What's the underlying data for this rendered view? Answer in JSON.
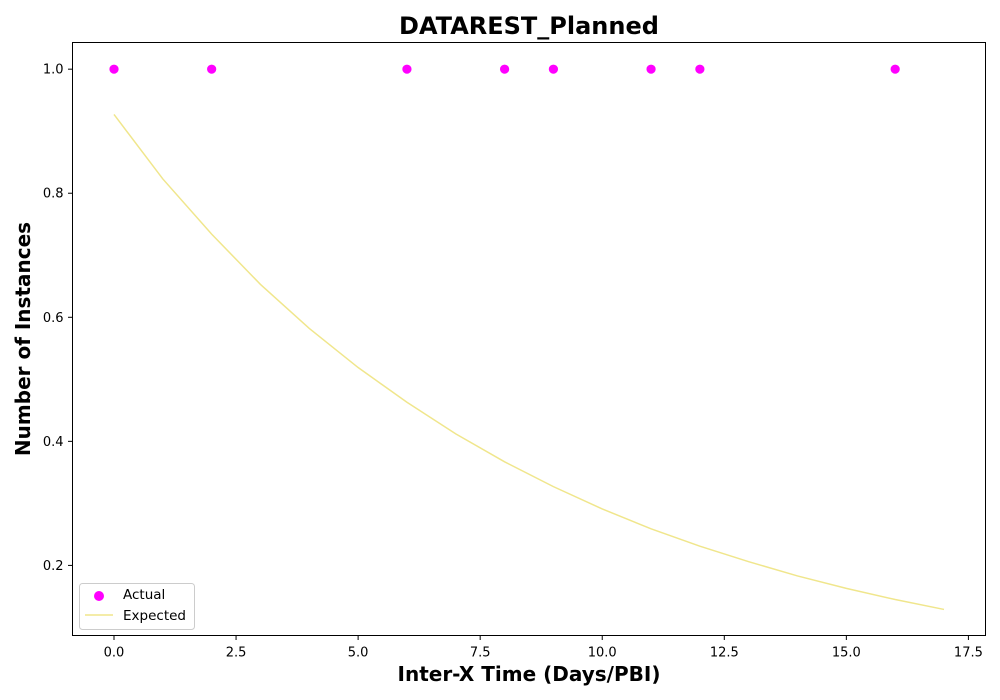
{
  "chart_data": {
    "type": "scatter",
    "title": "DATAREST_Planned",
    "xlabel": "Inter-X Time (Days/PBI)",
    "ylabel": "Number of Instances",
    "xlim": [
      -0.85,
      17.85
    ],
    "ylim": [
      0.087,
      1.043
    ],
    "xticks": [
      0.0,
      2.5,
      5.0,
      7.5,
      10.0,
      12.5,
      15.0,
      17.5
    ],
    "xtick_labels": [
      "0.0",
      "2.5",
      "5.0",
      "7.5",
      "10.0",
      "12.5",
      "15.0",
      "17.5"
    ],
    "yticks": [
      0.2,
      0.4,
      0.6,
      0.8,
      1.0
    ],
    "ytick_labels": [
      "0.2",
      "0.4",
      "0.6",
      "0.8",
      "1.0"
    ],
    "grid": false,
    "legend_position": "lower-left",
    "series": [
      {
        "name": "Actual",
        "kind": "scatter",
        "color": "#ff00ff",
        "x": [
          0,
          2,
          6,
          8,
          9,
          11,
          12,
          16
        ],
        "y": [
          1.0,
          1.0,
          1.0,
          1.0,
          1.0,
          1.0,
          1.0,
          1.0
        ]
      },
      {
        "name": "Expected",
        "kind": "line",
        "color": "#f0e68c",
        "x": [
          0,
          1,
          2,
          3,
          4,
          5,
          6,
          7,
          8,
          9,
          10,
          11,
          12,
          13,
          14,
          15,
          16,
          17
        ],
        "y": [
          0.927,
          0.823,
          0.734,
          0.653,
          0.582,
          0.519,
          0.463,
          0.412,
          0.367,
          0.327,
          0.291,
          0.259,
          0.231,
          0.206,
          0.183,
          0.163,
          0.145,
          0.129
        ]
      }
    ]
  }
}
